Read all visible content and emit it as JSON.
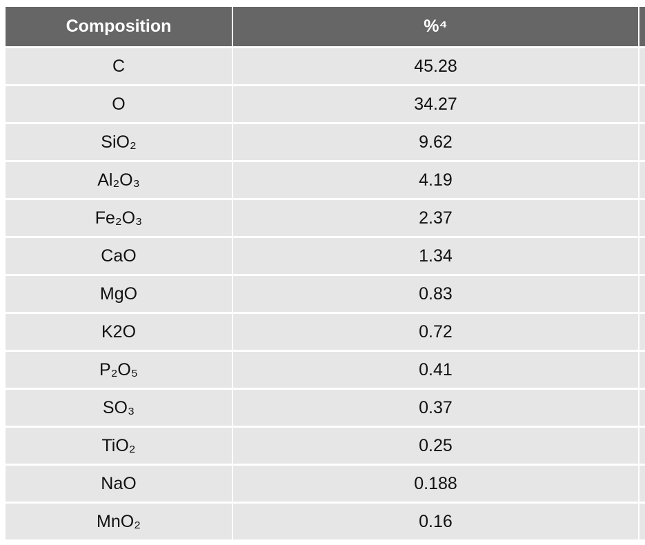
{
  "table": {
    "header": [
      "Composition",
      "%⁴"
    ],
    "rows": [
      [
        "C",
        "45.28"
      ],
      [
        "O",
        "34.27"
      ],
      [
        "SiO₂",
        "9.62"
      ],
      [
        "Al₂O₃",
        "4.19"
      ],
      [
        "Fe₂O₃",
        "2.37"
      ],
      [
        "CaO",
        "1.34"
      ],
      [
        "MgO",
        "0.83"
      ],
      [
        "K2O",
        "0.72"
      ],
      [
        "P₂O₅",
        "0.41"
      ],
      [
        "SO₃",
        "0.37"
      ],
      [
        "TiO₂",
        "0.25"
      ],
      [
        "NaO",
        "0.188"
      ],
      [
        "MnO₂",
        "0.16"
      ]
    ]
  }
}
